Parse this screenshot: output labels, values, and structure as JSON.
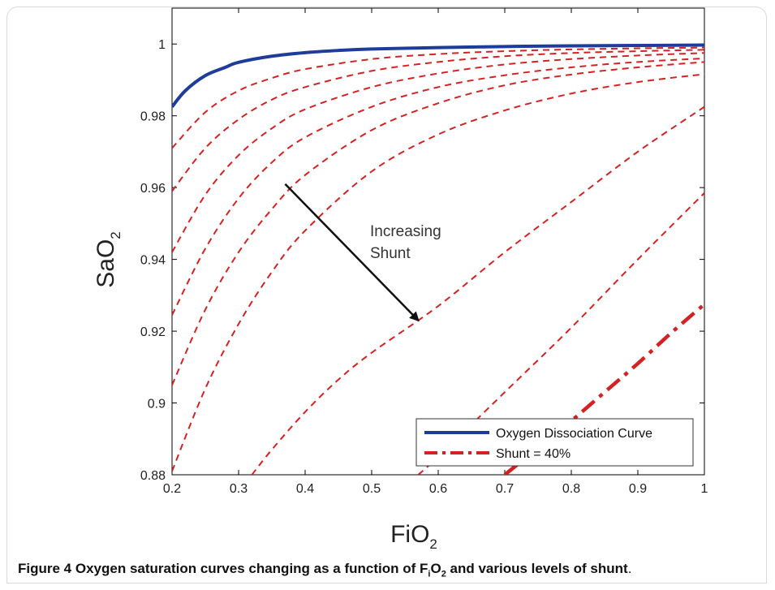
{
  "chart_data": {
    "type": "line",
    "xlabel": "FiO",
    "xlabel_sub": "2",
    "ylabel": "SaO",
    "ylabel_sub": "2",
    "xlim": [
      0.2,
      1.0
    ],
    "ylim": [
      0.88,
      1.01
    ],
    "xticks": [
      0.2,
      0.3,
      0.4,
      0.5,
      0.6,
      0.7,
      0.8,
      0.9,
      1.0
    ],
    "xtick_labels": [
      "0.2",
      "0.3",
      "0.4",
      "0.5",
      "0.6",
      "0.7",
      "0.8",
      "0.9",
      "1"
    ],
    "yticks": [
      0.88,
      0.9,
      0.92,
      0.94,
      0.96,
      0.98,
      1.0
    ],
    "ytick_labels": [
      "0.88",
      "0.9",
      "0.92",
      "0.94",
      "0.96",
      "0.98",
      "1"
    ],
    "grid": false,
    "legend_position": "bottom-right",
    "legend": [
      {
        "label": "Oxygen Dissociation Curve",
        "style": "solid",
        "color": "#1f3c9a"
      },
      {
        "label": "Shunt = 40%",
        "style": "dashdot",
        "color": "#d42222"
      }
    ],
    "annotation": {
      "lines": [
        "Increasing",
        "Shunt"
      ],
      "arrow_from": [
        0.37,
        0.961
      ],
      "arrow_to": [
        0.57,
        0.923
      ]
    },
    "series": [
      {
        "name": "Oxygen Dissociation Curve",
        "style": "solid",
        "color": "#1f3c9a",
        "x": [
          0.2,
          0.22,
          0.25,
          0.28,
          0.3,
          0.35,
          0.4,
          0.45,
          0.5,
          0.6,
          0.7,
          0.8,
          0.9,
          1.0
        ],
        "y": [
          0.9825,
          0.987,
          0.9912,
          0.9935,
          0.9949,
          0.9966,
          0.9976,
          0.9982,
          0.9986,
          0.999,
          0.9993,
          0.9995,
          0.9996,
          0.9997
        ]
      },
      {
        "style": "dashed",
        "color": "#d42222",
        "x": [
          0.2,
          0.25,
          0.3,
          0.35,
          0.4,
          0.5,
          0.6,
          0.7,
          0.8,
          0.9,
          1.0
        ],
        "y": [
          0.971,
          0.981,
          0.987,
          0.9905,
          0.993,
          0.9958,
          0.9972,
          0.998,
          0.9985,
          0.9988,
          0.999
        ]
      },
      {
        "style": "dashed",
        "color": "#d42222",
        "x": [
          0.2,
          0.25,
          0.3,
          0.35,
          0.4,
          0.5,
          0.6,
          0.7,
          0.8,
          0.9,
          1.0
        ],
        "y": [
          0.959,
          0.971,
          0.979,
          0.9845,
          0.988,
          0.9925,
          0.995,
          0.9966,
          0.9975,
          0.998,
          0.9984
        ]
      },
      {
        "style": "dashed",
        "color": "#d42222",
        "x": [
          0.2,
          0.25,
          0.3,
          0.35,
          0.4,
          0.5,
          0.6,
          0.7,
          0.8,
          0.9,
          1.0
        ],
        "y": [
          0.942,
          0.958,
          0.969,
          0.9765,
          0.9818,
          0.988,
          0.9918,
          0.9943,
          0.9958,
          0.9968,
          0.9975
        ]
      },
      {
        "style": "dashed",
        "color": "#d42222",
        "x": [
          0.2,
          0.25,
          0.3,
          0.35,
          0.4,
          0.5,
          0.6,
          0.7,
          0.8,
          0.9,
          1.0
        ],
        "y": [
          0.9245,
          0.943,
          0.957,
          0.967,
          0.974,
          0.9825,
          0.988,
          0.9913,
          0.9935,
          0.995,
          0.996
        ]
      },
      {
        "style": "dashed",
        "color": "#d42222",
        "x": [
          0.2,
          0.25,
          0.3,
          0.35,
          0.4,
          0.5,
          0.6,
          0.7,
          0.8,
          0.9,
          1.0
        ],
        "y": [
          0.905,
          0.926,
          0.942,
          0.954,
          0.9635,
          0.976,
          0.9835,
          0.9885,
          0.9915,
          0.9935,
          0.995
        ]
      },
      {
        "style": "dashed",
        "color": "#d42222",
        "x": [
          0.2,
          0.25,
          0.3,
          0.35,
          0.4,
          0.5,
          0.6,
          0.7,
          0.8,
          0.9,
          1.0
        ],
        "y": [
          0.881,
          0.904,
          0.922,
          0.9365,
          0.948,
          0.9645,
          0.9748,
          0.9815,
          0.9862,
          0.9894,
          0.9916
        ]
      },
      {
        "style": "dashed",
        "color": "#d42222",
        "x": [
          0.32,
          0.35,
          0.4,
          0.45,
          0.5,
          0.6,
          0.7,
          0.8,
          0.9,
          1.0
        ],
        "y": [
          0.88,
          0.887,
          0.8975,
          0.9065,
          0.914,
          0.927,
          0.942,
          0.956,
          0.97,
          0.9825
        ]
      },
      {
        "style": "dashed",
        "color": "#d42222",
        "x": [
          0.57,
          0.6,
          0.7,
          0.8,
          0.9,
          1.0
        ],
        "y": [
          0.88,
          0.885,
          0.903,
          0.921,
          0.94,
          0.9585
        ]
      },
      {
        "name": "Shunt = 40%",
        "style": "dashdot",
        "color": "#d42222",
        "x": [
          0.7,
          0.75,
          0.8,
          0.85,
          0.9,
          0.95,
          1.0
        ],
        "y": [
          0.88,
          0.8875,
          0.895,
          0.903,
          0.911,
          0.9195,
          0.9275
        ]
      }
    ]
  },
  "caption": {
    "label": "Figure 4",
    "text_1": "Oxygen saturation curves changing as a function of F",
    "sub_i": "i",
    "text_2": "O",
    "sub_2": "2",
    "text_3": " and various levels of shunt",
    "end": "."
  }
}
